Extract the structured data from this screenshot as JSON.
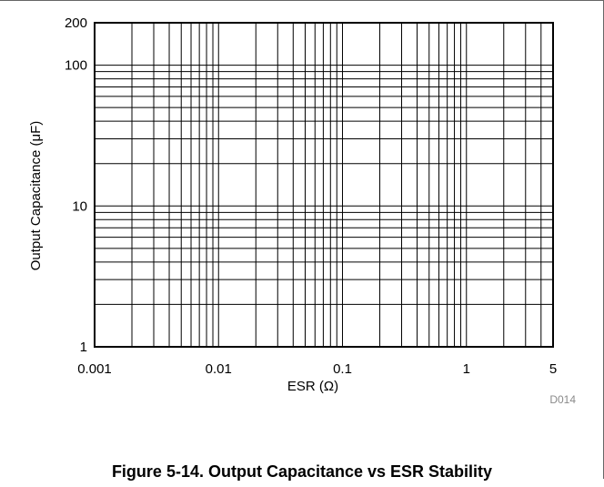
{
  "figure": {
    "caption": "Figure 5-14. Output Capacitance vs ESR Stability",
    "code": "D014"
  },
  "chart_data": {
    "type": "line",
    "title": "",
    "xlabel": "ESR (Ω)",
    "ylabel": "Output Capacitance (μF)",
    "xscale": "log",
    "yscale": "log",
    "xlim": [
      0.001,
      5
    ],
    "ylim": [
      1,
      200
    ],
    "x_tick_labels": [
      {
        "value": 0.001,
        "label": "0.001"
      },
      {
        "value": 0.01,
        "label": "0.01"
      },
      {
        "value": 0.1,
        "label": "0.1"
      },
      {
        "value": 1,
        "label": "1"
      },
      {
        "value": 5,
        "label": "5"
      }
    ],
    "y_tick_labels": [
      {
        "value": 1,
        "label": "1"
      },
      {
        "value": 10,
        "label": "10"
      },
      {
        "value": 100,
        "label": "100"
      },
      {
        "value": 200,
        "label": "200"
      }
    ],
    "x_gridlines": [
      0.002,
      0.003,
      0.004,
      0.005,
      0.006,
      0.007,
      0.008,
      0.009,
      0.01,
      0.02,
      0.03,
      0.04,
      0.05,
      0.06,
      0.07,
      0.08,
      0.09,
      0.1,
      0.2,
      0.3,
      0.4,
      0.5,
      0.6,
      0.7,
      0.8,
      0.9,
      1,
      2,
      3,
      4
    ],
    "y_gridlines": [
      2,
      3,
      4,
      5,
      6,
      7,
      8,
      9,
      10,
      20,
      30,
      40,
      50,
      60,
      70,
      80,
      90,
      100
    ],
    "grid": true,
    "series": []
  }
}
